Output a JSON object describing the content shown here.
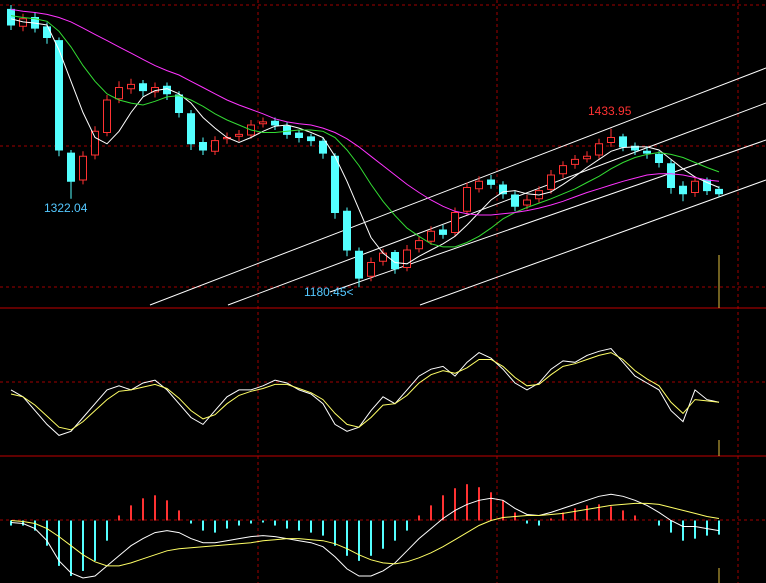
{
  "chart_data": [
    {
      "type": "candlestick",
      "open": [
        1625,
        1598,
        1612,
        1597,
        1575,
        1395,
        1352,
        1392,
        1428,
        1482,
        1498,
        1506,
        1493,
        1502,
        1488,
        1458,
        1412,
        1398,
        1418,
        1422,
        1424,
        1442,
        1446,
        1438,
        1427,
        1421,
        1414,
        1390,
        1302,
        1238,
        1198,
        1222,
        1236,
        1212,
        1242,
        1254,
        1272,
        1268,
        1302,
        1338,
        1352,
        1344,
        1328,
        1312,
        1322,
        1337,
        1362,
        1377,
        1386,
        1392,
        1412,
        1421,
        1406,
        1398,
        1393,
        1378,
        1342,
        1332,
        1352,
        1337
      ],
      "high": [
        1632,
        1618,
        1620,
        1604,
        1580,
        1400,
        1398,
        1438,
        1488,
        1510,
        1514,
        1512,
        1508,
        1508,
        1494,
        1464,
        1420,
        1422,
        1428,
        1432,
        1448,
        1452,
        1452,
        1444,
        1432,
        1426,
        1420,
        1395,
        1308,
        1244,
        1228,
        1242,
        1240,
        1248,
        1262,
        1278,
        1280,
        1308,
        1348,
        1358,
        1360,
        1350,
        1334,
        1328,
        1342,
        1368,
        1382,
        1392,
        1398,
        1418,
        1433.95,
        1426,
        1412,
        1404,
        1398,
        1384,
        1350,
        1358,
        1356,
        1342
      ],
      "low": [
        1592,
        1590,
        1588,
        1570,
        1390,
        1322.04,
        1345,
        1385,
        1422,
        1475,
        1490,
        1486,
        1484,
        1480,
        1452,
        1400,
        1392,
        1392,
        1410,
        1414,
        1418,
        1436,
        1432,
        1418,
        1412,
        1406,
        1386,
        1290,
        1230,
        1180.45,
        1190,
        1215,
        1202,
        1206,
        1236,
        1248,
        1258,
        1262,
        1296,
        1332,
        1338,
        1322,
        1302,
        1305,
        1316,
        1330,
        1355,
        1370,
        1380,
        1386,
        1405,
        1398,
        1392,
        1386,
        1372,
        1330,
        1318,
        1325,
        1328,
        1325
      ],
      "close": [
        1600,
        1610,
        1595,
        1580,
        1400,
        1350,
        1390,
        1430,
        1480,
        1500,
        1505,
        1495,
        1500,
        1490,
        1460,
        1410,
        1400,
        1415,
        1420,
        1425,
        1440,
        1445,
        1440,
        1425,
        1420,
        1415,
        1395,
        1300,
        1240,
        1195,
        1220,
        1235,
        1210,
        1240,
        1255,
        1270,
        1265,
        1300,
        1340,
        1350,
        1345,
        1330,
        1310,
        1320,
        1335,
        1360,
        1375,
        1385,
        1390,
        1410,
        1420,
        1405,
        1400,
        1395,
        1380,
        1340,
        1330,
        1350,
        1335,
        1330
      ],
      "up_color": "#ff3232",
      "down_color": "#54ffff",
      "ylim": [
        1160,
        1640
      ],
      "series": [
        {
          "color": "#ffffff",
          "values": [
            1610,
            1605,
            1603,
            1600,
            1560,
            1510,
            1460,
            1420,
            1410,
            1430,
            1460,
            1485,
            1495,
            1498,
            1490,
            1475,
            1452,
            1435,
            1420,
            1412,
            1420,
            1430,
            1438,
            1440,
            1435,
            1428,
            1420,
            1390,
            1350,
            1305,
            1260,
            1235,
            1220,
            1218,
            1230,
            1240,
            1250,
            1262,
            1280,
            1300,
            1320,
            1333,
            1335,
            1330,
            1328,
            1333,
            1345,
            1358,
            1372,
            1385,
            1398,
            1404,
            1405,
            1405,
            1400,
            1385,
            1370,
            1357,
            1348,
            1340
          ]
        },
        {
          "color": "#33dd33",
          "values": [
            1615,
            1612,
            1610,
            1606,
            1590,
            1565,
            1535,
            1510,
            1490,
            1480,
            1475,
            1472,
            1478,
            1485,
            1487,
            1480,
            1470,
            1458,
            1448,
            1440,
            1432,
            1428,
            1428,
            1430,
            1432,
            1432,
            1430,
            1420,
            1400,
            1375,
            1345,
            1318,
            1295,
            1275,
            1262,
            1250,
            1245,
            1245,
            1252,
            1262,
            1275,
            1290,
            1300,
            1308,
            1315,
            1322,
            1330,
            1338,
            1348,
            1358,
            1370,
            1380,
            1388,
            1393,
            1396,
            1393,
            1388,
            1380,
            1372,
            1365
          ]
        },
        {
          "color": "#ff33ff",
          "values": [
            1625,
            1622,
            1620,
            1617,
            1612,
            1605,
            1595,
            1585,
            1575,
            1565,
            1555,
            1545,
            1535,
            1527,
            1520,
            1510,
            1500,
            1490,
            1480,
            1472,
            1465,
            1458,
            1450,
            1445,
            1442,
            1440,
            1435,
            1428,
            1418,
            1405,
            1390,
            1375,
            1360,
            1345,
            1332,
            1320,
            1310,
            1302,
            1298,
            1296,
            1296,
            1298,
            1300,
            1303,
            1307,
            1312,
            1318,
            1325,
            1332,
            1338,
            1344,
            1350,
            1355,
            1360,
            1362,
            1362,
            1360,
            1356,
            1352,
            1350
          ]
        }
      ],
      "annotations": [
        "1322.04",
        "1433.95",
        "1180.45<"
      ]
    },
    {
      "type": "line",
      "ylim": [
        0,
        100
      ],
      "series": [
        {
          "color": "#ffffff",
          "values": [
            45,
            40,
            30,
            20,
            12,
            15,
            25,
            35,
            45,
            48,
            45,
            50,
            52,
            45,
            35,
            25,
            20,
            30,
            40,
            45,
            45,
            48,
            52,
            50,
            45,
            42,
            35,
            20,
            15,
            18,
            30,
            40,
            35,
            45,
            55,
            60,
            62,
            55,
            65,
            72,
            68,
            60,
            50,
            45,
            50,
            60,
            66,
            65,
            70,
            73,
            75,
            65,
            55,
            50,
            45,
            30,
            22,
            45,
            38,
            36
          ]
        },
        {
          "color": "#ffff66",
          "values": [
            42,
            40,
            34,
            26,
            18,
            16,
            22,
            30,
            38,
            44,
            45,
            47,
            49,
            46,
            39,
            30,
            24,
            27,
            35,
            41,
            44,
            46,
            49,
            49,
            46,
            43,
            38,
            28,
            20,
            18,
            25,
            34,
            35,
            41,
            50,
            56,
            59,
            57,
            61,
            67,
            67,
            62,
            54,
            48,
            49,
            56,
            62,
            64,
            67,
            70,
            72,
            67,
            59,
            53,
            48,
            36,
            28,
            38,
            37,
            36
          ]
        }
      ]
    },
    {
      "type": "macd",
      "ylim": [
        -60,
        60
      ],
      "histogram": {
        "up_color": "#ff3232",
        "down_color": "#54ffff",
        "values": [
          -5,
          -5,
          -10,
          -25,
          -45,
          -55,
          -50,
          -40,
          -20,
          5,
          15,
          22,
          25,
          20,
          10,
          -3,
          -10,
          -12,
          -8,
          -5,
          -3,
          -2,
          -5,
          -8,
          -10,
          -12,
          -15,
          -25,
          -35,
          -40,
          -35,
          -28,
          -20,
          -10,
          5,
          15,
          25,
          32,
          36,
          33,
          28,
          20,
          8,
          -3,
          -5,
          2,
          8,
          12,
          15,
          16,
          14,
          10,
          5,
          0,
          -5,
          -12,
          -20,
          -18,
          -15,
          -14
        ]
      },
      "series": [
        {
          "color": "#ffffff",
          "values": [
            -2,
            -3,
            -8,
            -20,
            -40,
            -52,
            -57,
            -55,
            -45,
            -35,
            -25,
            -18,
            -12,
            -10,
            -12,
            -18,
            -22,
            -22,
            -20,
            -18,
            -16,
            -15,
            -16,
            -18,
            -20,
            -22,
            -26,
            -36,
            -48,
            -55,
            -55,
            -50,
            -42,
            -30,
            -18,
            -8,
            2,
            10,
            16,
            20,
            22,
            20,
            12,
            6,
            5,
            8,
            12,
            16,
            20,
            24,
            26,
            24,
            20,
            15,
            8,
            0,
            -6,
            -6,
            -8,
            -10
          ]
        },
        {
          "color": "#ffff66",
          "values": [
            0,
            -1,
            -3,
            -8,
            -16,
            -25,
            -34,
            -41,
            -45,
            -45,
            -42,
            -38,
            -34,
            -30,
            -28,
            -27,
            -26,
            -25,
            -24,
            -23,
            -22,
            -20,
            -19,
            -18,
            -18,
            -19,
            -20,
            -23,
            -28,
            -34,
            -39,
            -42,
            -43,
            -41,
            -37,
            -32,
            -26,
            -19,
            -12,
            -5,
            0,
            3,
            4,
            5,
            5,
            6,
            7,
            9,
            11,
            13,
            15,
            16,
            17,
            17,
            16,
            13,
            10,
            7,
            4,
            2
          ]
        }
      ]
    }
  ]
}
